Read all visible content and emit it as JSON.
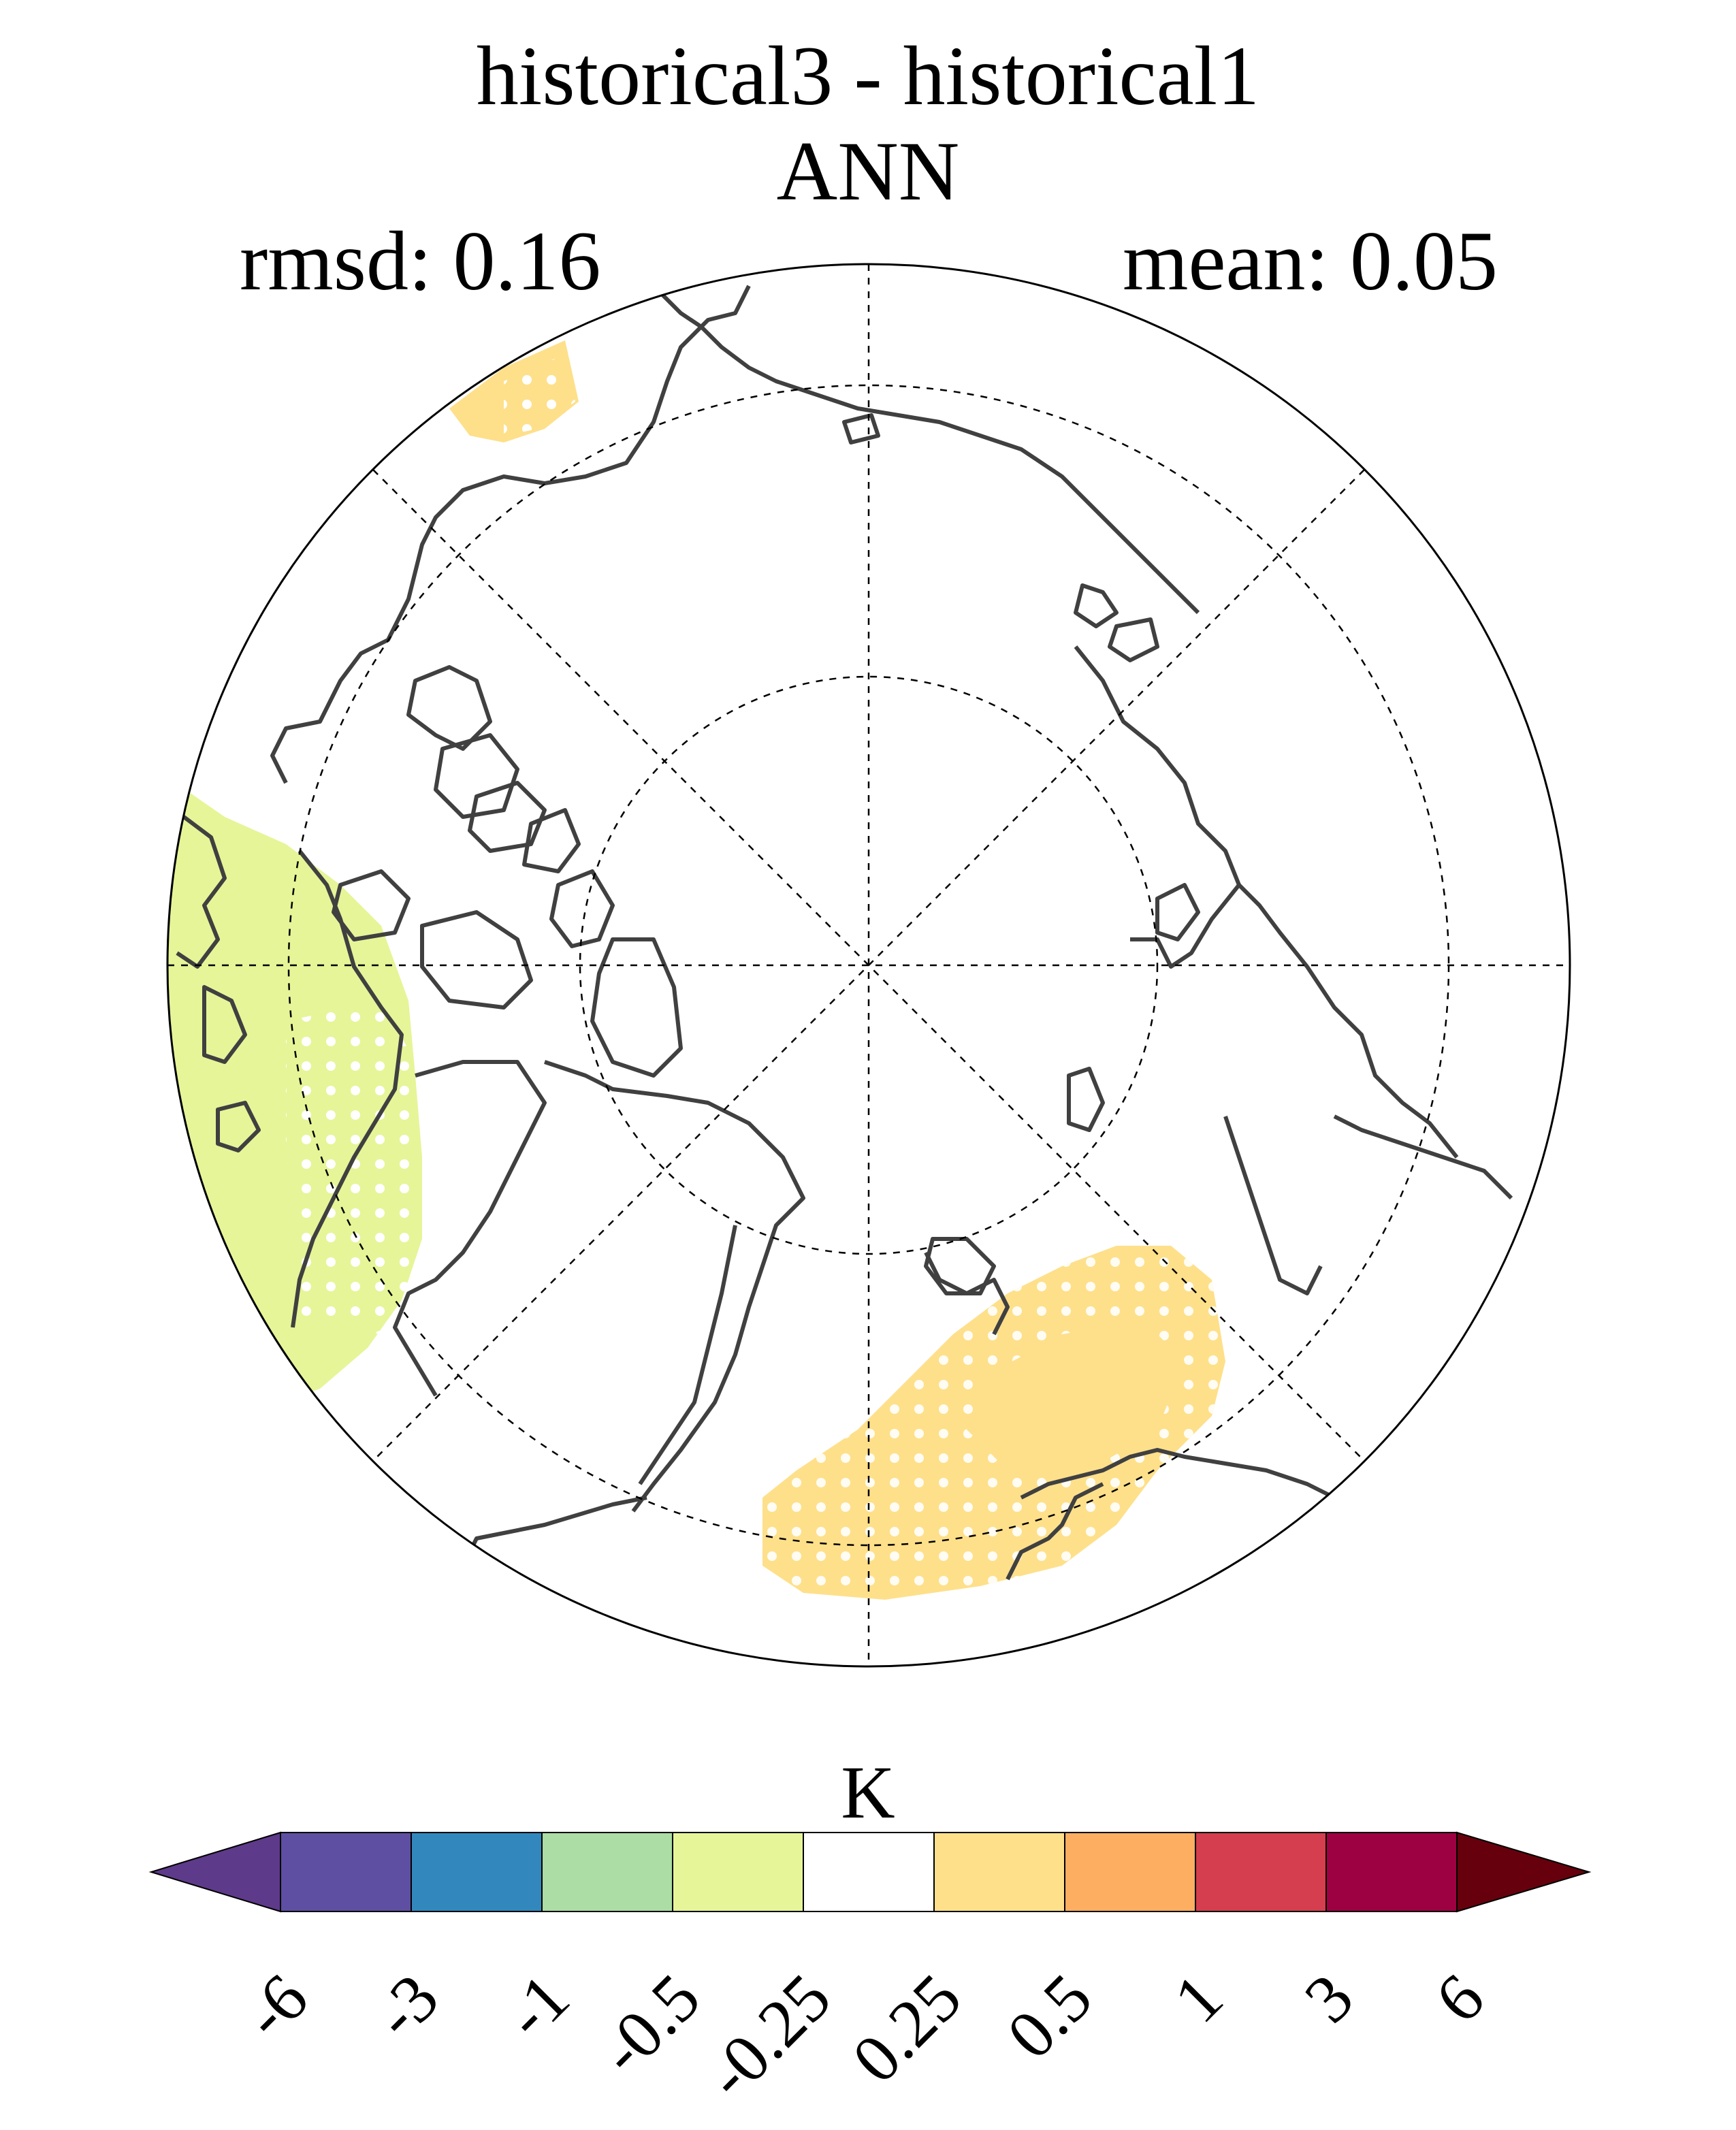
{
  "title": "historical3 - historical1",
  "subtitle": "ANN",
  "stats": {
    "rmsd_label": "rmsd: 0.16",
    "mean_label": "mean: 0.05"
  },
  "colorbar": {
    "unit": "K",
    "levels": [
      "-6",
      "-3",
      "-1",
      "-0.5",
      "-0.25",
      "0.25",
      "0.5",
      "1",
      "3",
      "6"
    ],
    "colors": [
      "#5e3a8a",
      "#5e4fa2",
      "#3288bd",
      "#abdda4",
      "#e6f598",
      "#ffffff",
      "#fee08b",
      "#fdae61",
      "#d53e4f",
      "#9e0142",
      "#67000d"
    ]
  },
  "map": {
    "projection": "north-polar-stereographic",
    "land_outline_color": "#404040",
    "significance_stipple_color": "#ffffff",
    "anomaly_regions": [
      {
        "name": "north-atlantic-europe-positive",
        "bin": "0.25 to 0.5",
        "color": "#fee08b"
      },
      {
        "name": "bering-strait-positive",
        "bin": "0.25 to 0.5",
        "color": "#fee08b"
      },
      {
        "name": "east-asia-negative",
        "bin": "-0.5 to -0.25",
        "color": "#e6f598"
      }
    ]
  }
}
